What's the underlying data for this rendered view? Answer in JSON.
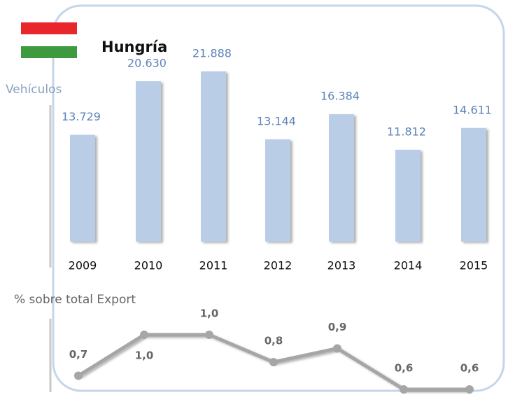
{
  "chart_data": [
    {
      "type": "bar",
      "title": "Hungría",
      "y_label": "Vehículos",
      "categories": [
        "2009",
        "2010",
        "2011",
        "2012",
        "2013",
        "2014",
        "2015"
      ],
      "values": [
        13729,
        20630,
        21888,
        13144,
        16384,
        11812,
        14611
      ],
      "value_labels": [
        "13.729",
        "20.630",
        "21.888",
        "13.144",
        "16.384",
        "11.812",
        "14.611"
      ],
      "color": "#b9cde6"
    },
    {
      "type": "line",
      "y_label": "% sobre total Export",
      "categories": [
        "2009",
        "2010",
        "2011",
        "2012",
        "2013",
        "2014",
        "2015"
      ],
      "values": [
        0.7,
        1.0,
        1.0,
        0.8,
        0.9,
        0.6,
        0.6
      ],
      "value_labels": [
        "0,7",
        "1,0",
        "1,0",
        "0,8",
        "0,9",
        "0,6",
        "0,6"
      ],
      "color": "#a6a6a6"
    }
  ]
}
